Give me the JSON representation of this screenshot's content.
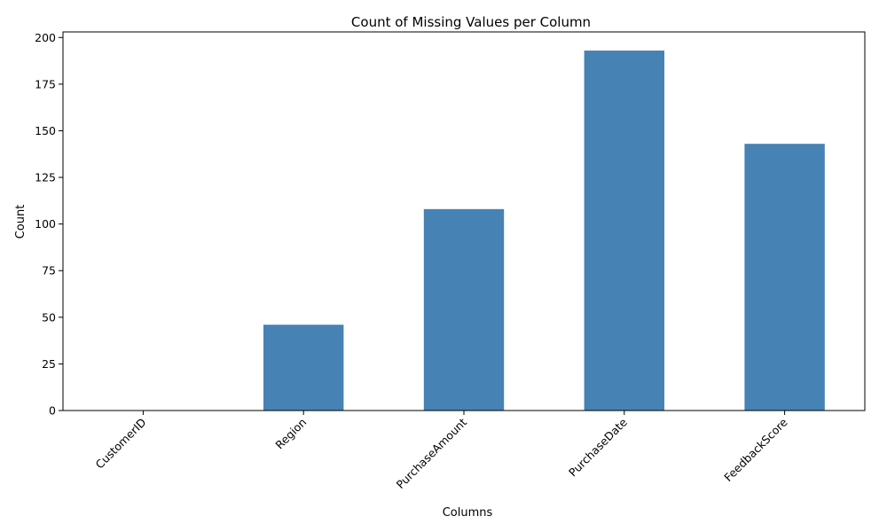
{
  "chart_data": {
    "type": "bar",
    "title": "Count of Missing Values per Column",
    "xlabel": "Columns",
    "ylabel": "Count",
    "categories": [
      "CustomerID",
      "Region",
      "PurchaseAmount",
      "PurchaseDate",
      "FeedbackScore"
    ],
    "values": [
      0,
      46,
      108,
      193,
      143
    ],
    "ylim": [
      0,
      203
    ],
    "yticks": [
      0,
      25,
      50,
      75,
      100,
      125,
      150,
      175,
      200
    ],
    "bar_color": "#4682b4",
    "grid": false,
    "legend": "none",
    "xtick_rotation": 45
  }
}
